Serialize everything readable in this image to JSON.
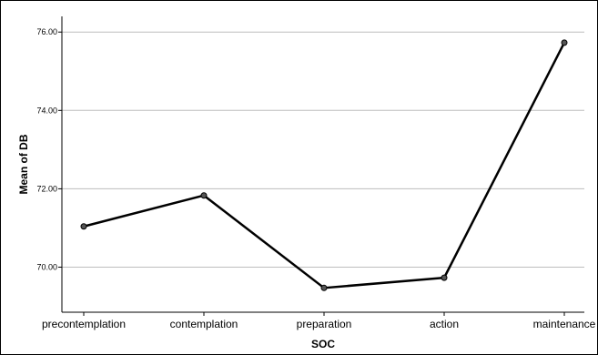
{
  "chart_data": {
    "type": "line",
    "title": "",
    "xlabel": "SOC",
    "ylabel": "Mean of DB",
    "categories": [
      "precontemplation",
      "contemplation",
      "preparation",
      "action",
      "maintenance"
    ],
    "series": [
      {
        "values": [
          71.04,
          71.83,
          69.47,
          69.73,
          75.73
        ]
      }
    ],
    "ylim": [
      68.85,
      76.4
    ],
    "yticks": [
      70,
      72,
      74,
      76
    ],
    "ytick_labels": [
      "70.00",
      "72.00",
      "74.00",
      "76.00"
    ],
    "grid": "horizontal",
    "legend": "none",
    "colors": {
      "line": "#000000",
      "marker_fill": "#555555",
      "grid": "#bdbdbd",
      "axis": "#000000"
    }
  }
}
